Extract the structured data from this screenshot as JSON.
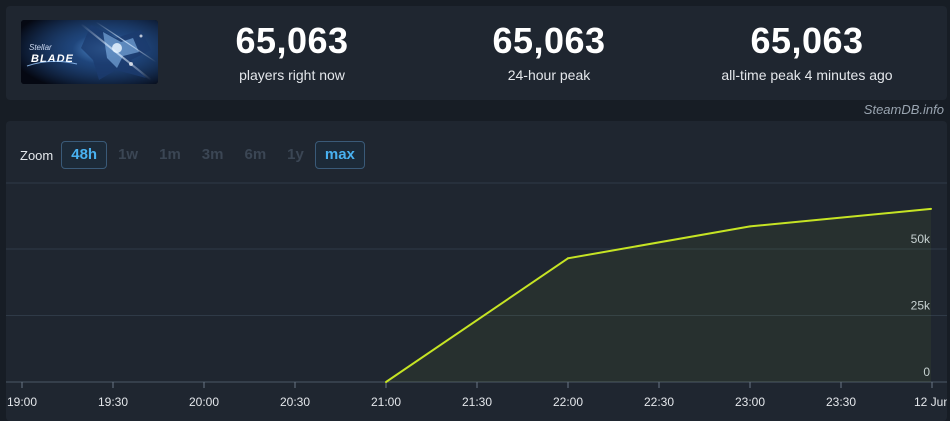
{
  "stats": [
    {
      "value": "65,063",
      "label": "players right now"
    },
    {
      "value": "65,063",
      "label": "24-hour peak"
    },
    {
      "value": "65,063",
      "label": "all-time peak 4 minutes ago"
    }
  ],
  "game_logo_text": "STELLAR BLADE",
  "watermark": "SteamDB.info",
  "zoom": {
    "label": "Zoom",
    "buttons": [
      {
        "label": "48h",
        "active": true
      },
      {
        "label": "1w",
        "active": false
      },
      {
        "label": "1m",
        "active": false
      },
      {
        "label": "3m",
        "active": false
      },
      {
        "label": "6m",
        "active": false
      },
      {
        "label": "1y",
        "active": false
      },
      {
        "label": "max",
        "active": true
      }
    ]
  },
  "colors": {
    "line": "#c6e424",
    "active_zoom": "#49b1f0",
    "background": "#171d25",
    "panel": "#1f2630"
  },
  "chart_data": {
    "type": "line",
    "title": "",
    "xlabel": "",
    "ylabel": "",
    "x_ticks": [
      "19:00",
      "19:30",
      "20:00",
      "20:30",
      "21:00",
      "21:30",
      "22:00",
      "22:30",
      "23:00",
      "23:30",
      "12 Jun"
    ],
    "y_ticks": [
      "0",
      "25k",
      "50k"
    ],
    "ylim": [
      0,
      75000
    ],
    "grid": true,
    "series": [
      {
        "values": [
          {
            "x": "21:00",
            "y": 0
          },
          {
            "x": "22:00",
            "y": 46500
          },
          {
            "x": "23:00",
            "y": 58500
          },
          {
            "x": "00:00",
            "y": 65063
          }
        ]
      }
    ]
  }
}
